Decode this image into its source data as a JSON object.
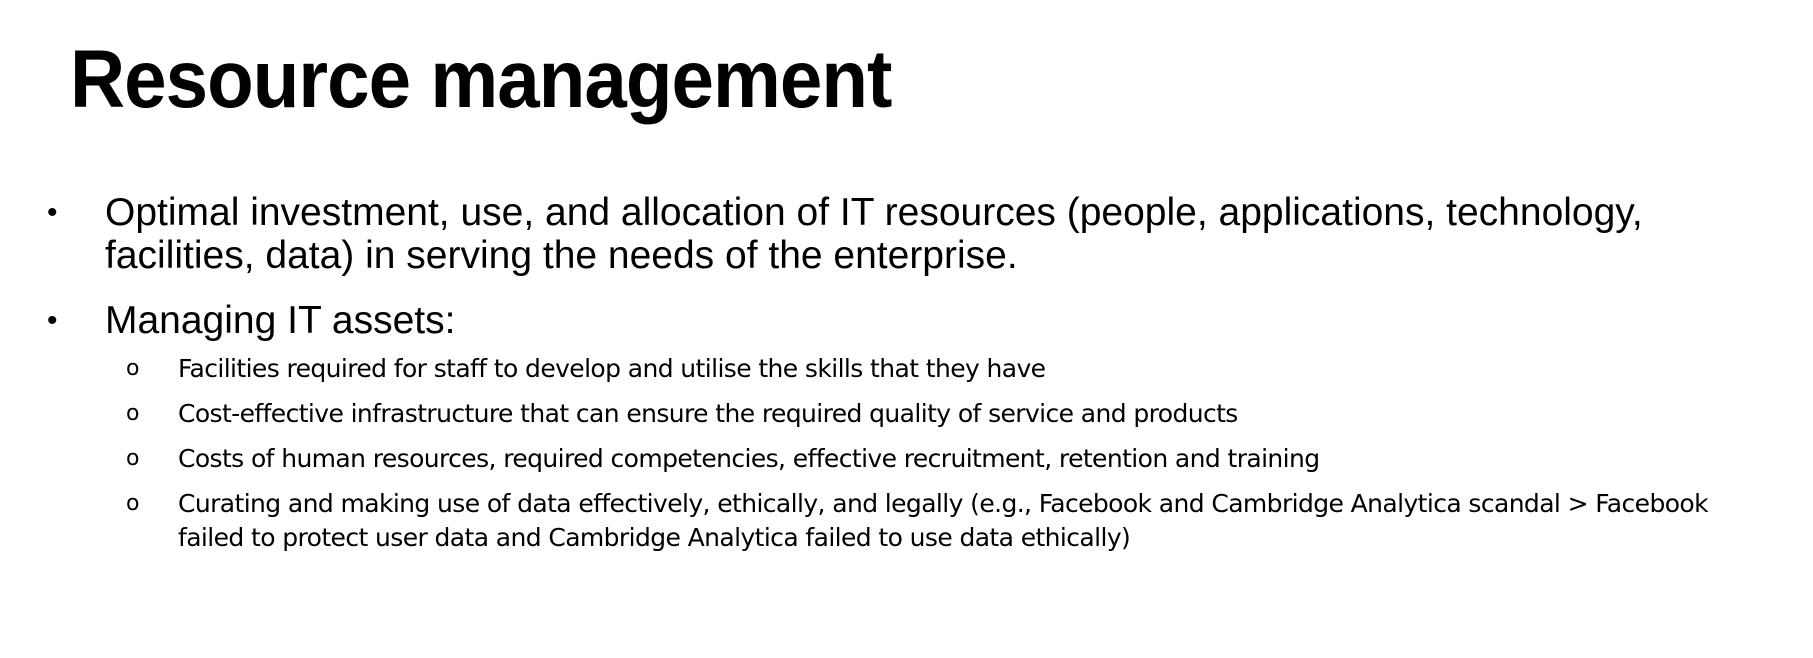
{
  "slide": {
    "title": "Resource management",
    "bullet_marker": "•",
    "sub_bullet_marker": "o",
    "bullets": [
      {
        "text": "Optimal investment, use, and allocation of IT resources (people, applications, technology, facilities, data) in serving the needs of the enterprise."
      },
      {
        "text": "Managing IT assets:",
        "sub_bullets": [
          "Facilities required for staff to develop and utilise the skills that they have",
          "Cost-effective infrastructure that can ensure the required quality of service and products",
          "Costs of human resources, required competencies, effective recruitment, retention and training",
          "Curating and making use of data effectively, ethically, and legally (e.g., Facebook and Cambridge Analytica scandal > Facebook failed to protect user data and Cambridge Analytica failed to use data ethically)"
        ]
      }
    ]
  }
}
